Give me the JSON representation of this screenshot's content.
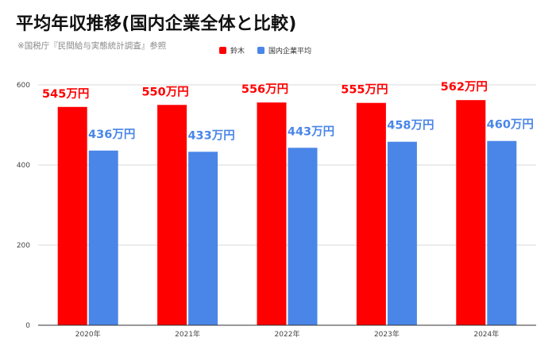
{
  "title": "平均年収推移(国内企業全体と比較)",
  "subtitle": "※国税庁『民間給与実態統計調査』参照",
  "colors": {
    "suzuki": "#ff0000",
    "national": "#4a86e8",
    "grid": "#d9d9d9",
    "axis": "#333333"
  },
  "chart_data": {
    "type": "bar",
    "title": "平均年収推移(国内企業全体と比較)",
    "categories": [
      "2020年",
      "2021年",
      "2022年",
      "2023年",
      "2024年"
    ],
    "series": [
      {
        "name": "鈴木",
        "values": [
          545,
          550,
          556,
          555,
          562
        ],
        "labels": [
          "545万円",
          "550万円",
          "556万円",
          "555万円",
          "562万円"
        ],
        "color": "#ff0000"
      },
      {
        "name": "国内企業平均",
        "values": [
          436,
          433,
          443,
          458,
          460
        ],
        "labels": [
          "436万円",
          "433万円",
          "443万円",
          "458万円",
          "460万円"
        ],
        "color": "#4a86e8"
      }
    ],
    "ylim": [
      0,
      600
    ],
    "yticks": [
      "0",
      "200",
      "400",
      "600"
    ],
    "legend_position": "top-center",
    "grid": true
  }
}
